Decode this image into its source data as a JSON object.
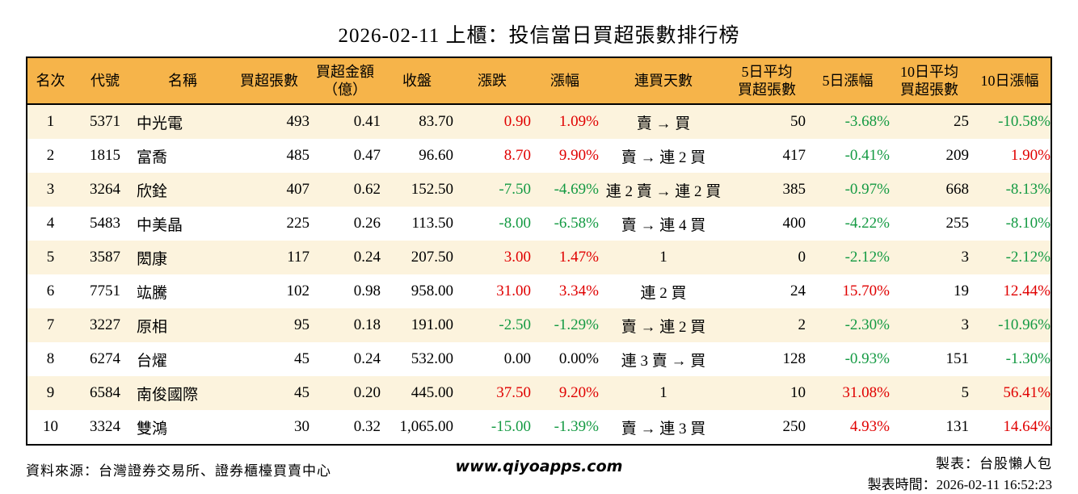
{
  "title": "2026-02-11 上櫃：投信當日買超張數排行榜",
  "palette": {
    "up_red": "#e00000",
    "down_green": "#149a43",
    "header_bg": "#f6b44a",
    "row_stripe": "#fcf3dd",
    "border": "#000000"
  },
  "table": {
    "columns": [
      "名次",
      "代號",
      "名稱",
      "買超張數",
      "買超金額\n（億）",
      "收盤",
      "漲跌",
      "漲幅",
      "連買天數",
      "5日平均\n買超張數",
      "5日漲幅",
      "10日平均\n買超張數",
      "10日漲幅"
    ],
    "rows": [
      {
        "cells": [
          "1",
          "5371",
          "中光電",
          "493",
          "0.41",
          "83.70",
          {
            "t": "0.90",
            "c": "red"
          },
          {
            "t": "1.09%",
            "c": "red"
          },
          "賣 → 買",
          "50",
          {
            "t": "-3.68%",
            "c": "green"
          },
          "25",
          {
            "t": "-10.58%",
            "c": "green"
          }
        ]
      },
      {
        "cells": [
          "2",
          "1815",
          "富喬",
          "485",
          "0.47",
          "96.60",
          {
            "t": "8.70",
            "c": "red"
          },
          {
            "t": "9.90%",
            "c": "red"
          },
          "賣 → 連 2 買",
          "417",
          {
            "t": "-0.41%",
            "c": "green"
          },
          "209",
          {
            "t": "1.90%",
            "c": "red"
          }
        ]
      },
      {
        "cells": [
          "3",
          "3264",
          "欣銓",
          "407",
          "0.62",
          "152.50",
          {
            "t": "-7.50",
            "c": "green"
          },
          {
            "t": "-4.69%",
            "c": "green"
          },
          "連 2 賣 → 連 2 買",
          "385",
          {
            "t": "-0.97%",
            "c": "green"
          },
          "668",
          {
            "t": "-8.13%",
            "c": "green"
          }
        ]
      },
      {
        "cells": [
          "4",
          "5483",
          "中美晶",
          "225",
          "0.26",
          "113.50",
          {
            "t": "-8.00",
            "c": "green"
          },
          {
            "t": "-6.58%",
            "c": "green"
          },
          "賣 → 連 4 買",
          "400",
          {
            "t": "-4.22%",
            "c": "green"
          },
          "255",
          {
            "t": "-8.10%",
            "c": "green"
          }
        ]
      },
      {
        "cells": [
          "5",
          "3587",
          "閎康",
          "117",
          "0.24",
          "207.50",
          {
            "t": "3.00",
            "c": "red"
          },
          {
            "t": "1.47%",
            "c": "red"
          },
          "1",
          "0",
          {
            "t": "-2.12%",
            "c": "green"
          },
          "3",
          {
            "t": "-2.12%",
            "c": "green"
          }
        ]
      },
      {
        "cells": [
          "6",
          "7751",
          "竑騰",
          "102",
          "0.98",
          "958.00",
          {
            "t": "31.00",
            "c": "red"
          },
          {
            "t": "3.34%",
            "c": "red"
          },
          "連 2 買",
          "24",
          {
            "t": "15.70%",
            "c": "red"
          },
          "19",
          {
            "t": "12.44%",
            "c": "red"
          }
        ]
      },
      {
        "cells": [
          "7",
          "3227",
          "原相",
          "95",
          "0.18",
          "191.00",
          {
            "t": "-2.50",
            "c": "green"
          },
          {
            "t": "-1.29%",
            "c": "green"
          },
          "賣 → 連 2 買",
          "2",
          {
            "t": "-2.30%",
            "c": "green"
          },
          "3",
          {
            "t": "-10.96%",
            "c": "green"
          }
        ]
      },
      {
        "cells": [
          "8",
          "6274",
          "台燿",
          "45",
          "0.24",
          "532.00",
          {
            "t": "0.00",
            "c": ""
          },
          {
            "t": "0.00%",
            "c": ""
          },
          "連 3 賣 → 買",
          "128",
          {
            "t": "-0.93%",
            "c": "green"
          },
          "151",
          {
            "t": "-1.30%",
            "c": "green"
          }
        ]
      },
      {
        "cells": [
          "9",
          "6584",
          "南俊國際",
          "45",
          "0.20",
          "445.00",
          {
            "t": "37.50",
            "c": "red"
          },
          {
            "t": "9.20%",
            "c": "red"
          },
          "1",
          "10",
          {
            "t": "31.08%",
            "c": "red"
          },
          "5",
          {
            "t": "56.41%",
            "c": "red"
          }
        ]
      },
      {
        "cells": [
          "10",
          "3324",
          "雙鴻",
          "30",
          "0.32",
          "1,065.00",
          {
            "t": "-15.00",
            "c": "green"
          },
          {
            "t": "-1.39%",
            "c": "green"
          },
          "賣 → 連 3 買",
          "250",
          {
            "t": "4.93%",
            "c": "red"
          },
          "131",
          {
            "t": "14.64%",
            "c": "red"
          }
        ]
      }
    ]
  },
  "footer": {
    "source": "資料來源：台灣證券交易所、證券櫃檯買賣中心",
    "site": "www.qiyoapps.com",
    "maker": "製表：台股懶人包",
    "timestamp": "製表時間：2026-02-11 16:52:23"
  }
}
